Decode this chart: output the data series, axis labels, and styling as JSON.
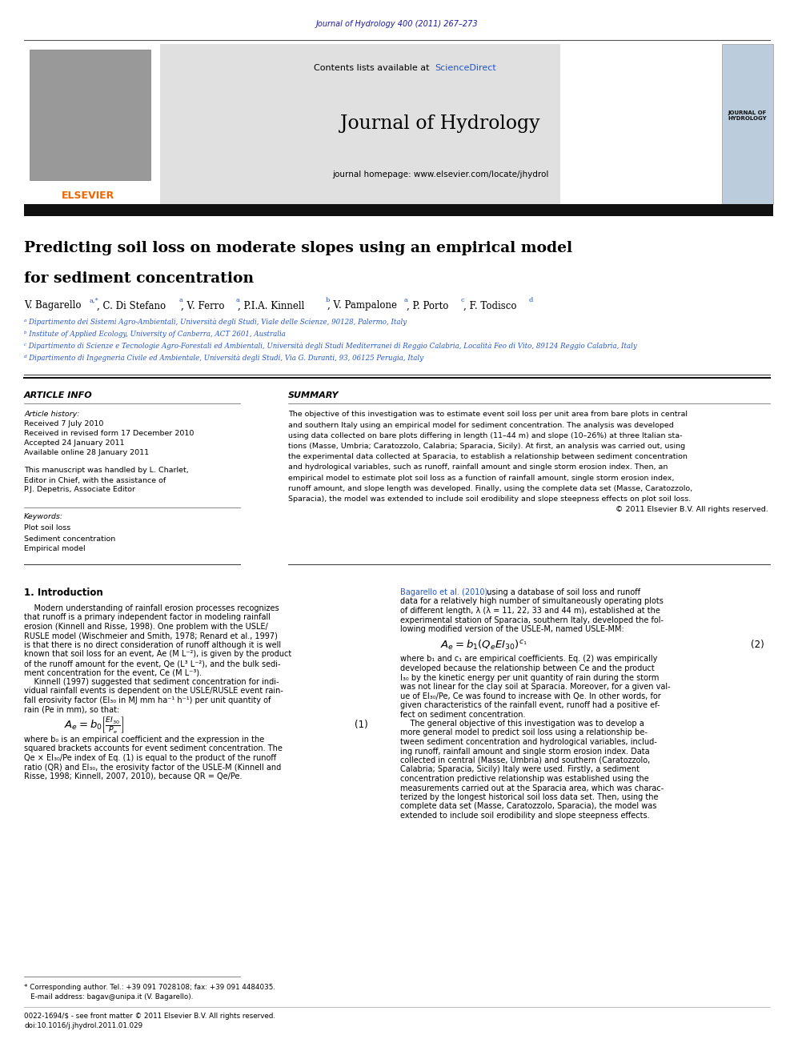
{
  "page_width": 9.92,
  "page_height": 13.23,
  "background_color": "#ffffff",
  "journal_citation": "Journal of Hydrology 400 (2011) 267–273",
  "journal_citation_color": "#1a1aaa",
  "header_bg": "#e0e0e0",
  "sciencedirect_color": "#2255cc",
  "journal_name": "Journal of Hydrology",
  "journal_homepage": "journal homepage: www.elsevier.com/locate/jhydrol",
  "thick_bar_color": "#111111",
  "elsevier_color": "#ee6600",
  "elsevier_text": "ELSEVIER",
  "article_title_line1": "Predicting soil loss on moderate slopes using an empirical model",
  "article_title_line2": "for sediment concentration",
  "article_info_header": "ARTICLE INFO",
  "summary_header": "SUMMARY",
  "article_history_label": "Article history:",
  "received": "Received 7 July 2010",
  "received_revised": "Received in revised form 17 December 2010",
  "accepted": "Accepted 24 January 2011",
  "available_online": "Available online 28 January 2011",
  "manuscript_line1": "This manuscript was handled by L. Charlet,",
  "manuscript_line2": "Editor in Chief, with the assistance of",
  "manuscript_line3": "P.J. Depetris, Associate Editor",
  "keywords_label": "Keywords:",
  "keyword1": "Plot soil loss",
  "keyword2": "Sediment concentration",
  "keyword3": "Empirical model",
  "summary_line1": "The objective of this investigation was to estimate event soil loss per unit area from bare plots in central",
  "summary_line2": "and southern Italy using an empirical model for sediment concentration. The analysis was developed",
  "summary_line3": "using data collected on bare plots differing in length (11–44 m) and slope (10–26%) at three Italian sta-",
  "summary_line4": "tions (Masse, Umbria; Caratozzolo, Calabria; Sparacia, Sicily). At first, an analysis was carried out, using",
  "summary_line5": "the experimental data collected at Sparacia, to establish a relationship between sediment concentration",
  "summary_line6": "and hydrological variables, such as runoff, rainfall amount and single storm erosion index. Then, an",
  "summary_line7": "empirical model to estimate plot soil loss as a function of rainfall amount, single storm erosion index,",
  "summary_line8": "runoff amount, and slope length was developed. Finally, using the complete data set (Masse, Caratozzolo,",
  "summary_line9": "Sparacia), the model was extended to include soil erodibility and slope steepness effects on plot soil loss.",
  "summary_line10": "© 2011 Elsevier B.V. All rights reserved.",
  "intro_header": "1. Introduction",
  "affil_a": "ᵃ Dipartimento dei Sistemi Agro-Ambientali, Università degli Studi, Viale delle Scienze, 90128, Palermo, Italy",
  "affil_b": "ᵇ Institute of Applied Ecology, University of Canberra, ACT 2601, Australia",
  "affil_c": "ᶜ Dipartimento di Scienze e Tecnologie Agro-Forestali ed Ambientali, Università degli Studi Mediterranei di Reggio Calabria, Località Feo di Vito, 89124 Reggio Calabria, Italy",
  "affil_d": "ᵈ Dipartimento di Ingegneria Civile ed Ambientale, Università degli Studi, Via G. Duranti, 93, 06125 Perugia, Italy",
  "intro_left_lines": [
    "    Modern understanding of rainfall erosion processes recognizes",
    "that runoff is a primary independent factor in modeling rainfall",
    "erosion (Kinnell and Risse, 1998). One problem with the USLE/",
    "RUSLE model (Wischmeier and Smith, 1978; Renard et al., 1997)",
    "is that there is no direct consideration of runoff although it is well",
    "known that soil loss for an event, Ae (M L⁻²), is given by the product",
    "of the runoff amount for the event, Qe (L³ L⁻²), and the bulk sedi-",
    "ment concentration for the event, Ce (M L⁻³).",
    "    Kinnell (1997) suggested that sediment concentration for indi-",
    "vidual rainfall events is dependent on the USLE/RUSLE event rain-",
    "fall erosivity factor (EI₃₀ in MJ mm ha⁻¹ h⁻¹) per unit quantity of",
    "rain (Pe in mm), so that:"
  ],
  "equation1_num": "(1)",
  "eq1_note_lines": [
    "where b₀ is an empirical coefficient and the expression in the",
    "squared brackets accounts for event sediment concentration. The",
    "Qe × EI₃₀/Pe index of Eq. (1) is equal to the product of the runoff",
    "ratio (QR) and EI₃₀, the erosivity factor of the USLE-M (Kinnell and",
    "Risse, 1998; Kinnell, 2007, 2010), because QR = Qe/Pe."
  ],
  "intro_right_line1": "Bagarello et al. (2010),",
  "intro_right_line1b": " using a database of soil loss and runoff",
  "intro_right_lines": [
    "data for a relatively high number of simultaneously operating plots",
    "of different length, λ (λ = 11, 22, 33 and 44 m), established at the",
    "experimental station of Sparacia, southern Italy, developed the fol-",
    "lowing modified version of the USLE-M, named USLE-MM:"
  ],
  "equation2_num": "(2)",
  "eq2_note_lines": [
    "where b₁ and c₁ are empirical coefficients. Eq. (2) was empirically",
    "developed because the relationship between Ce and the product",
    "I₃₀ by the kinetic energy per unit quantity of rain during the storm",
    "was not linear for the clay soil at Sparacia. Moreover, for a given val-",
    "ue of EI₃₀/Pe, Ce was found to increase with Qe. In other words, for",
    "given characteristics of the rainfall event, runoff had a positive ef-",
    "fect on sediment concentration.",
    "    The general objective of this investigation was to develop a",
    "more general model to predict soil loss using a relationship be-",
    "tween sediment concentration and hydrological variables, includ-",
    "ing runoff, rainfall amount and single storm erosion index. Data",
    "collected in central (Masse, Umbria) and southern (Caratozzolo,",
    "Calabria; Sparacia, Sicily) Italy were used. Firstly, a sediment",
    "concentration predictive relationship was established using the",
    "measurements carried out at the Sparacia area, which was charac-",
    "terized by the longest historical soil loss data set. Then, using the",
    "complete data set (Masse, Caratozzolo, Sparacia), the model was",
    "extended to include soil erodibility and slope steepness effects."
  ],
  "footnote1": "* Corresponding author. Tel.: +39 091 7028108; fax: +39 091 4484035.",
  "footnote2": "   E-mail address: bagav@unipa.it (V. Bagarello).",
  "footnote3": "0022-1694/$ - see front matter © 2011 Elsevier B.V. All rights reserved.",
  "footnote4": "doi:10.1016/j.jhydrol.2011.01.029",
  "link_color": "#2255cc",
  "text_color": "#000000",
  "affil_color": "#2255cc"
}
